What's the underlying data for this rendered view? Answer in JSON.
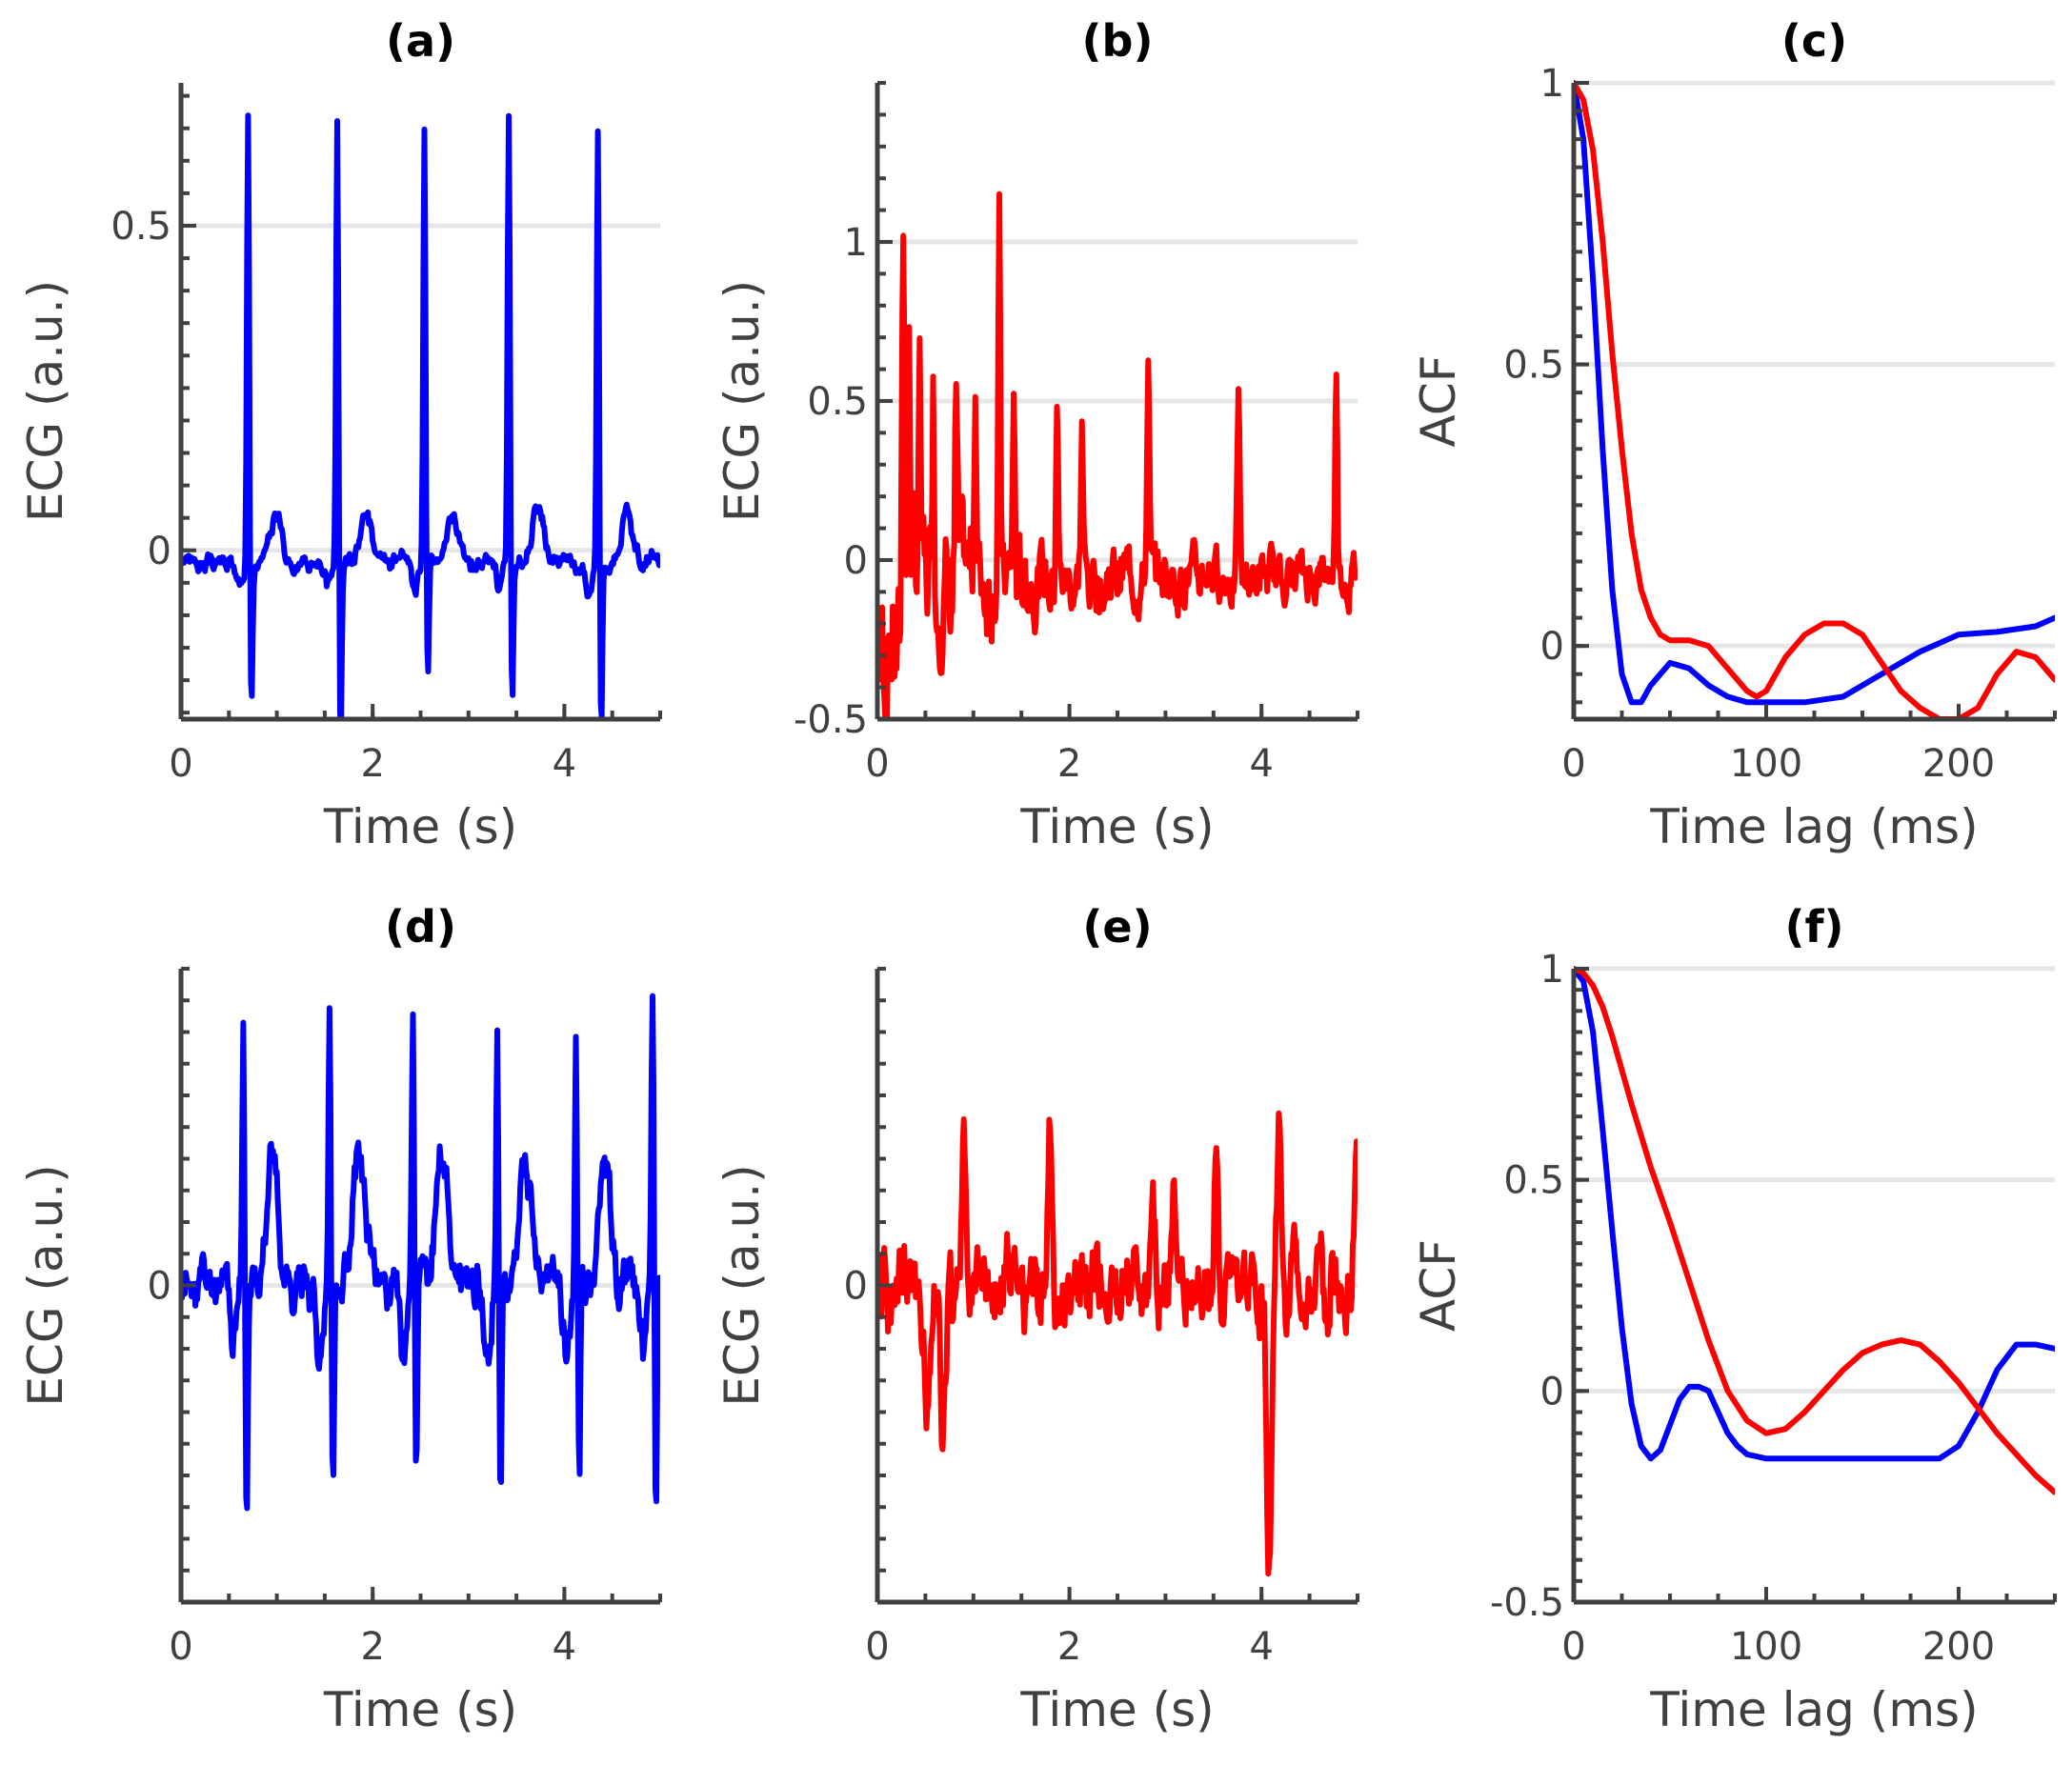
{
  "figure": {
    "title": ""
  },
  "colors": {
    "blue": "#0000ff",
    "red": "#ff0000",
    "axis": "#404040",
    "grid": "#e6e6e6"
  },
  "chart_data": [
    {
      "id": "a",
      "title": "(a)",
      "type": "line",
      "xlabel": "Time (s)",
      "ylabel": "ECG (a.u.)",
      "xlim": [
        0,
        5
      ],
      "ylim": [
        -0.26,
        0.72
      ],
      "xticks": [
        0,
        2,
        4
      ],
      "xtick_labels": [
        "0",
        "2",
        "4"
      ],
      "yticks": [
        0,
        0.5
      ],
      "ytick_labels": [
        "0",
        "0.5"
      ],
      "grid_y": [
        0.5,
        0
      ],
      "series": [
        {
          "name": "ECG",
          "color": "#0000ff",
          "kind": "ecg",
          "params": {
            "beats": [
              0.7,
              1.63,
              2.54,
              3.42,
              4.35
            ],
            "r": [
              0.72,
              0.69,
              0.68,
              0.69,
              0.68
            ],
            "s": [
              -0.22,
              -0.27,
              -0.18,
              -0.22,
              -0.25
            ],
            "t": 0.08,
            "noise": 0.02,
            "base": -0.02,
            "seed": 3
          }
        }
      ]
    },
    {
      "id": "b",
      "title": "(b)",
      "type": "line",
      "xlabel": "Time (s)",
      "ylabel": "ECG (a.u.)",
      "xlim": [
        0,
        5
      ],
      "ylim": [
        -0.5,
        1.5
      ],
      "xticks": [
        0,
        2,
        4
      ],
      "xtick_labels": [
        "0",
        "2",
        "4"
      ],
      "yticks": [
        -0.5,
        0,
        0.5,
        1
      ],
      "ytick_labels": [
        "-0.5",
        "0",
        "0.5",
        "1"
      ],
      "grid_y": [
        1,
        0.5,
        0
      ],
      "series": [
        {
          "name": "ECG",
          "color": "#ff0000",
          "kind": "noisy",
          "params": {
            "spikes": [
              [
                0.27,
                1.33
              ],
              [
                0.33,
                0.78
              ],
              [
                0.44,
                0.62
              ],
              [
                0.58,
                0.65
              ],
              [
                0.82,
                0.55
              ],
              [
                1.02,
                0.65
              ],
              [
                1.27,
                1.04
              ],
              [
                1.42,
                0.53
              ],
              [
                1.87,
                0.65
              ],
              [
                2.13,
                0.45
              ],
              [
                2.82,
                0.71
              ],
              [
                3.76,
                0.57
              ],
              [
                4.78,
                0.63
              ]
            ],
            "noise": 0.12,
            "decay": 1.2,
            "base": -0.05,
            "seed": 7
          }
        }
      ]
    },
    {
      "id": "c",
      "title": "(c)",
      "type": "line",
      "xlabel": "Time lag (ms)",
      "ylabel": "ACF",
      "xlim": [
        0,
        250
      ],
      "ylim": [
        -0.13,
        1
      ],
      "xticks": [
        0,
        100,
        200
      ],
      "xtick_labels": [
        "0",
        "100",
        "200"
      ],
      "yticks": [
        0,
        0.5,
        1
      ],
      "ytick_labels": [
        "0",
        "0.5",
        "1"
      ],
      "grid_y": [
        1,
        0.5,
        0
      ],
      "series": [
        {
          "name": "ACF blue",
          "color": "#0000ff",
          "kind": "points",
          "x": [
            0,
            5,
            10,
            15,
            20,
            25,
            30,
            35,
            40,
            50,
            60,
            70,
            80,
            90,
            100,
            120,
            140,
            160,
            180,
            200,
            220,
            240,
            250
          ],
          "y": [
            1.0,
            0.9,
            0.65,
            0.35,
            0.1,
            -0.05,
            -0.1,
            -0.1,
            -0.07,
            -0.03,
            -0.04,
            -0.07,
            -0.09,
            -0.1,
            -0.1,
            -0.1,
            -0.09,
            -0.05,
            -0.01,
            0.02,
            0.025,
            0.035,
            0.05
          ]
        },
        {
          "name": "ACF red",
          "color": "#ff0000",
          "kind": "points",
          "x": [
            0,
            5,
            10,
            15,
            20,
            25,
            30,
            35,
            40,
            45,
            50,
            60,
            70,
            80,
            90,
            95,
            100,
            110,
            120,
            130,
            140,
            150,
            160,
            170,
            180,
            190,
            200,
            210,
            220,
            230,
            240,
            250
          ],
          "y": [
            1.0,
            0.97,
            0.88,
            0.72,
            0.52,
            0.35,
            0.2,
            0.1,
            0.05,
            0.02,
            0.01,
            0.01,
            0.0,
            -0.04,
            -0.08,
            -0.09,
            -0.08,
            -0.02,
            0.02,
            0.04,
            0.04,
            0.02,
            -0.03,
            -0.08,
            -0.11,
            -0.13,
            -0.13,
            -0.11,
            -0.05,
            -0.01,
            -0.02,
            -0.06
          ]
        }
      ]
    },
    {
      "id": "d",
      "title": "(d)",
      "type": "line",
      "xlabel": "Time (s)",
      "ylabel": "ECG (a.u.)",
      "xlim": [
        0,
        5
      ],
      "ylim": [
        -1,
        1
      ],
      "xticks": [
        0,
        2,
        4
      ],
      "xtick_labels": [
        "0",
        "2",
        "4"
      ],
      "yticks": [
        0
      ],
      "ytick_labels": [
        "0"
      ],
      "grid_y": [
        0
      ],
      "series": [
        {
          "name": "ECG",
          "color": "#0000ff",
          "kind": "ecg",
          "params": {
            "beats": [
              0.65,
              1.55,
              2.42,
              3.3,
              4.12,
              4.92
            ],
            "r": [
              0.88,
              0.9,
              0.87,
              0.84,
              0.79,
              0.98
            ],
            "s": [
              -0.78,
              -0.63,
              -0.62,
              -0.68,
              -0.62,
              -0.71
            ],
            "t": 0.4,
            "noise": 0.12,
            "base": 0.0,
            "seed": 11
          }
        }
      ]
    },
    {
      "id": "e",
      "title": "(e)",
      "type": "line",
      "xlabel": "Time (s)",
      "ylabel": "ECG (a.u.)",
      "xlim": [
        0,
        5
      ],
      "ylim": [
        -1,
        1
      ],
      "xticks": [
        0,
        2,
        4
      ],
      "xtick_labels": [
        "0",
        "2",
        "4"
      ],
      "yticks": [
        0
      ],
      "ytick_labels": [
        "0"
      ],
      "grid_y": [
        0
      ],
      "series": [
        {
          "name": "ECG",
          "color": "#ff0000",
          "kind": "noisy2",
          "params": {
            "peaks": [
              [
                0.9,
                0.76
              ],
              [
                1.8,
                0.62
              ],
              [
                2.87,
                0.48
              ],
              [
                3.08,
                0.48
              ],
              [
                3.53,
                0.65
              ],
              [
                4.18,
                0.64
              ],
              [
                4.98,
                0.57
              ]
            ],
            "dips": [
              [
                0.52,
                -0.58
              ],
              [
                0.68,
                -0.53
              ],
              [
                4.08,
                -0.9
              ]
            ],
            "noise": 0.22,
            "seed": 19
          }
        }
      ]
    },
    {
      "id": "f",
      "title": "(f)",
      "type": "line",
      "xlabel": "Time lag (ms)",
      "ylabel": "ACF",
      "xlim": [
        0,
        250
      ],
      "ylim": [
        -0.5,
        1
      ],
      "xticks": [
        0,
        100,
        200
      ],
      "xtick_labels": [
        "0",
        "100",
        "200"
      ],
      "yticks": [
        -0.5,
        0,
        0.5,
        1
      ],
      "ytick_labels": [
        "-0.5",
        "0",
        "0.5",
        "1"
      ],
      "grid_y": [
        1,
        0.5,
        0
      ],
      "series": [
        {
          "name": "ACF blue",
          "color": "#0000ff",
          "kind": "points",
          "x": [
            0,
            5,
            10,
            15,
            20,
            25,
            30,
            35,
            40,
            45,
            50,
            55,
            60,
            65,
            70,
            75,
            80,
            85,
            90,
            100,
            110,
            120,
            140,
            160,
            170,
            180,
            190,
            200,
            210,
            220,
            230,
            240,
            250
          ],
          "y": [
            1.0,
            0.97,
            0.85,
            0.62,
            0.38,
            0.15,
            -0.03,
            -0.13,
            -0.16,
            -0.14,
            -0.08,
            -0.02,
            0.01,
            0.01,
            0.0,
            -0.05,
            -0.1,
            -0.13,
            -0.15,
            -0.16,
            -0.16,
            -0.16,
            -0.16,
            -0.16,
            -0.16,
            -0.16,
            -0.16,
            -0.13,
            -0.05,
            0.05,
            0.11,
            0.11,
            0.1
          ]
        },
        {
          "name": "ACF red",
          "color": "#ff0000",
          "kind": "points",
          "x": [
            0,
            5,
            10,
            15,
            20,
            30,
            40,
            50,
            60,
            70,
            80,
            90,
            100,
            110,
            120,
            130,
            140,
            150,
            160,
            170,
            180,
            190,
            200,
            210,
            220,
            230,
            240,
            250
          ],
          "y": [
            1.0,
            0.99,
            0.96,
            0.91,
            0.84,
            0.68,
            0.53,
            0.4,
            0.26,
            0.12,
            0.0,
            -0.07,
            -0.1,
            -0.09,
            -0.05,
            0.0,
            0.05,
            0.09,
            0.11,
            0.12,
            0.11,
            0.07,
            0.02,
            -0.04,
            -0.1,
            -0.15,
            -0.2,
            -0.24
          ]
        }
      ]
    }
  ]
}
